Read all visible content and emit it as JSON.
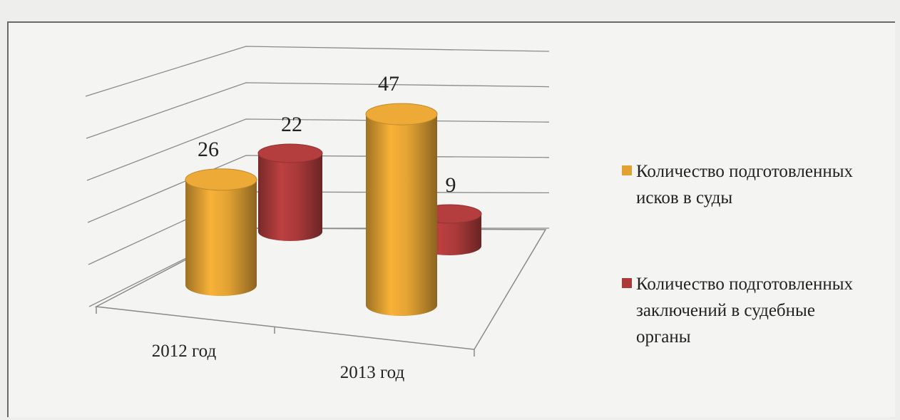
{
  "chart_data": {
    "type": "bar3d",
    "categories": [
      "2012 год",
      "2013 год"
    ],
    "series": [
      {
        "name": "Количество подготовленных исков в суды",
        "color": "#e2a233",
        "values": [
          26,
          47
        ]
      },
      {
        "name": "Количество подготовленных заключений в судебные органы",
        "color": "#ab3a3a",
        "values": [
          22,
          9
        ]
      }
    ],
    "ylim": [
      0,
      50
    ],
    "yticks": [
      0,
      10,
      20,
      30,
      40,
      50
    ],
    "grid": true
  }
}
